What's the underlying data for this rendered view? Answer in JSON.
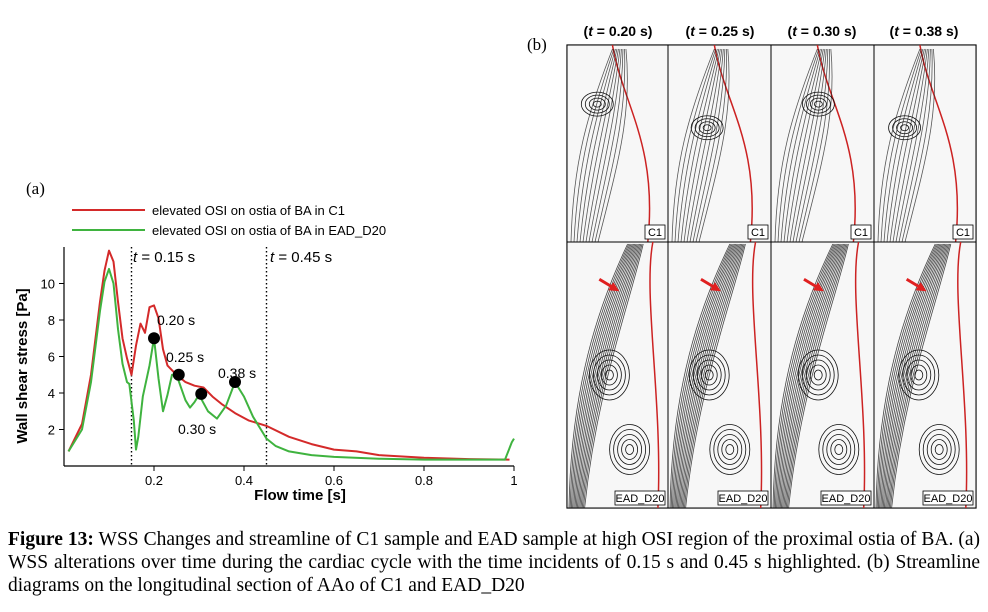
{
  "panel_a_label": "(a)",
  "panel_b_label": "(b)",
  "legend": [
    {
      "label": "elevated OSI on ostia of BA in C1",
      "color": "#d42a2a"
    },
    {
      "label": "elevated OSI on ostia of BA in EAD_D20",
      "color": "#3fb33f"
    }
  ],
  "markers": {
    "t015": {
      "prefix": "t",
      "value": " = 0.15 s"
    },
    "t045": {
      "prefix": "t",
      "value": " = 0.45 s"
    }
  },
  "point_labels": [
    "0.20 s",
    "0.25 s",
    "0.30 s",
    "0.38 s"
  ],
  "panel_b": {
    "column_headers": [
      {
        "open": "(",
        "t": "t",
        "rest": " = 0.20 s)"
      },
      {
        "open": "(",
        "t": "t",
        "rest": " = 0.25 s)"
      },
      {
        "open": "(",
        "t": "t",
        "rest": " = 0.30 s)"
      },
      {
        "open": "(",
        "t": "t",
        "rest": " = 0.38 s)"
      }
    ],
    "row_labels": [
      "C1",
      "EAD_D20"
    ],
    "arrow_color": "#e02020"
  },
  "caption": {
    "bold": "Figure 13:",
    "text": "  WSS Changes and streamline of C1 sample and EAD sample at high OSI region of the proximal ostia of BA. (a) WSS alterations over time during the cardiac cycle with the time incidents of 0.15 s and 0.45 s highlighted. (b) Streamline diagrams on the longitudinal section of AAo of C1 and EAD_D20"
  },
  "chart_data": {
    "type": "line",
    "xlabel": "Flow time [s]",
    "ylabel": "Wall shear stress [Pa]",
    "xlim": [
      0,
      1.0
    ],
    "ylim": [
      0,
      12
    ],
    "xticks": [
      0.2,
      0.4,
      0.6,
      0.8,
      1
    ],
    "yticks": [
      2,
      4,
      6,
      8,
      10
    ],
    "vlines": [
      0.15,
      0.45
    ],
    "series": [
      {
        "name": "elevated OSI on ostia of BA in C1",
        "color": "#d42a2a",
        "x": [
          0.01,
          0.04,
          0.06,
          0.08,
          0.09,
          0.1,
          0.11,
          0.12,
          0.13,
          0.14,
          0.15,
          0.16,
          0.17,
          0.18,
          0.19,
          0.2,
          0.21,
          0.22,
          0.23,
          0.25,
          0.27,
          0.29,
          0.31,
          0.33,
          0.35,
          0.38,
          0.41,
          0.45,
          0.5,
          0.55,
          0.6,
          0.65,
          0.7,
          0.8,
          0.9,
          0.99
        ],
        "y": [
          0.8,
          2.3,
          5.0,
          9.0,
          10.7,
          11.8,
          11.2,
          9.0,
          7.0,
          5.9,
          5.0,
          6.6,
          7.8,
          7.3,
          8.7,
          8.8,
          8.1,
          6.4,
          5.5,
          5.0,
          4.6,
          4.4,
          4.3,
          3.8,
          3.4,
          2.9,
          2.5,
          2.2,
          1.6,
          1.2,
          0.9,
          0.8,
          0.6,
          0.45,
          0.38,
          0.35
        ]
      },
      {
        "name": "elevated OSI on ostia of BA in EAD_D20",
        "color": "#3fb33f",
        "x": [
          0.01,
          0.04,
          0.06,
          0.08,
          0.09,
          0.1,
          0.11,
          0.12,
          0.13,
          0.14,
          0.145,
          0.155,
          0.16,
          0.165,
          0.175,
          0.19,
          0.2,
          0.21,
          0.22,
          0.23,
          0.24,
          0.25,
          0.27,
          0.28,
          0.29,
          0.3,
          0.32,
          0.34,
          0.36,
          0.38,
          0.4,
          0.42,
          0.45,
          0.47,
          0.5,
          0.55,
          0.6,
          0.7,
          0.8,
          0.9,
          0.98,
          0.995,
          1.0
        ],
        "y": [
          0.8,
          2.0,
          4.6,
          8.5,
          10.1,
          10.8,
          10.0,
          7.5,
          5.6,
          4.6,
          4.5,
          2.5,
          0.9,
          1.6,
          3.8,
          5.5,
          7.0,
          4.8,
          3.0,
          3.9,
          5.0,
          5.0,
          3.6,
          3.2,
          3.5,
          3.9,
          3.0,
          2.6,
          3.3,
          4.6,
          3.8,
          2.7,
          1.5,
          1.1,
          0.8,
          0.6,
          0.5,
          0.4,
          0.35,
          0.35,
          0.35,
          1.3,
          1.5
        ]
      }
    ],
    "highlight_points": [
      {
        "x": 0.2,
        "y": 7.0
      },
      {
        "x": 0.255,
        "y": 5.0
      },
      {
        "x": 0.305,
        "y": 3.95
      },
      {
        "x": 0.38,
        "y": 4.6
      }
    ]
  }
}
